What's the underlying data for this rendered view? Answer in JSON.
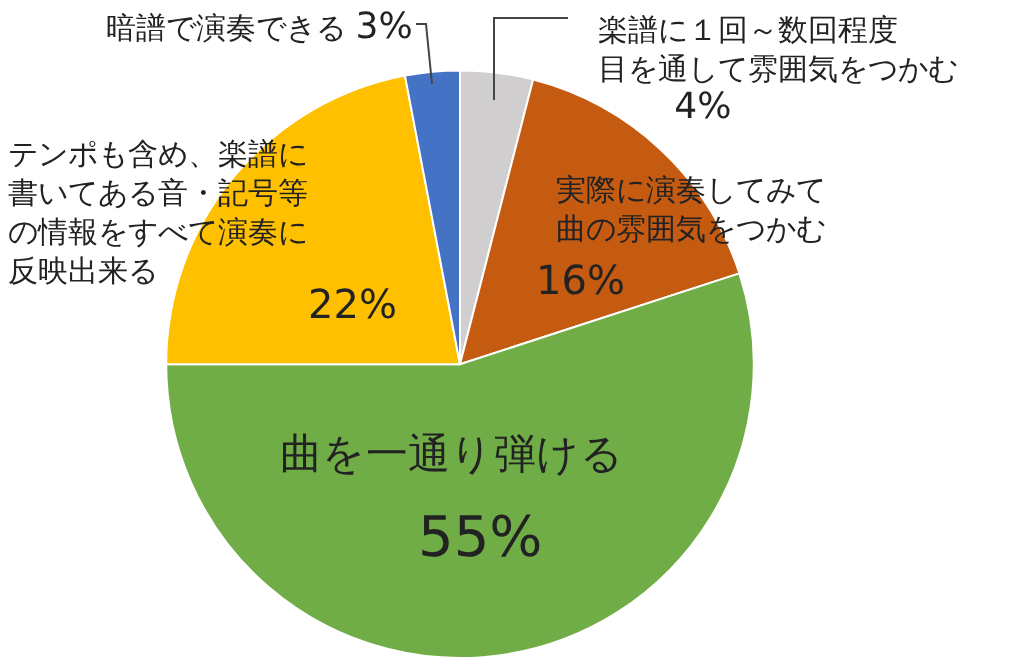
{
  "chart_data": {
    "type": "pie",
    "categories": [
      "楽譜に１回～数回程度目を通して雰囲気をつかむ",
      "実際に演奏してみて曲の雰囲気をつかむ",
      "曲を一通り弾ける",
      "テンポも含め、楽譜に書いてある音・記号等の情報をすべて演奏に反映出来る",
      "暗譜で演奏できる"
    ],
    "values": [
      4,
      16,
      55,
      22,
      3
    ],
    "value_labels": [
      "4%",
      "16%",
      "55%",
      "22%",
      "3%"
    ],
    "colors": [
      "#d0cece",
      "#c55a11",
      "#70ad47",
      "#ffc000",
      "#4472c4"
    ],
    "legend": false
  }
}
